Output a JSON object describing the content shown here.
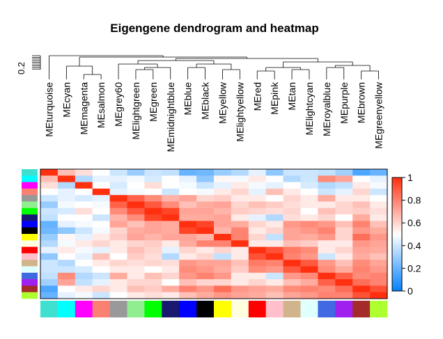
{
  "chart_data": {
    "type": "heatmap",
    "title": "Eigengene dendrogram and heatmap",
    "dendrogram_scale_label": "0.2",
    "modules": [
      "MEturquoise",
      "MEcyan",
      "MEmagenta",
      "MEsalmon",
      "MEgrey60",
      "MElightgreen",
      "MEgreen",
      "MEmidnightblue",
      "MEblue",
      "MEblack",
      "MEyellow",
      "MElightyellow",
      "MEred",
      "MEpink",
      "MEtan",
      "MElightcyan",
      "MEroyalblue",
      "MEpurple",
      "MEbrown",
      "MEgreenyellow"
    ],
    "module_colors": [
      "#40e0d0",
      "#00ffff",
      "#ff00ff",
      "#fa8072",
      "#999999",
      "#90ee90",
      "#00ff00",
      "#191970",
      "#0000ff",
      "#000000",
      "#ffff00",
      "#ffffe0",
      "#ff0000",
      "#ffc0cb",
      "#d2b48c",
      "#e0ffff",
      "#4169e1",
      "#a020f0",
      "#a52a2a",
      "#adff2f"
    ],
    "legend": {
      "ticks": [
        "0",
        "0.2",
        "0.4",
        "0.6",
        "0.8",
        "1"
      ],
      "range": [
        0,
        1
      ],
      "colors": [
        "#0080ff",
        "#ffffff",
        "#ff3010"
      ]
    },
    "values": [
      [
        1.0,
        0.66,
        0.58,
        0.5,
        0.4,
        0.3,
        0.4,
        0.38,
        0.2,
        0.22,
        0.3,
        0.35,
        0.45,
        0.28,
        0.4,
        0.4,
        0.38,
        0.32,
        0.15,
        0.2
      ],
      [
        0.66,
        1.0,
        0.35,
        0.45,
        0.45,
        0.48,
        0.42,
        0.5,
        0.45,
        0.28,
        0.52,
        0.48,
        0.55,
        0.5,
        0.35,
        0.4,
        0.78,
        0.72,
        0.5,
        0.45
      ],
      [
        0.58,
        0.35,
        1.0,
        0.5,
        0.42,
        0.5,
        0.58,
        0.5,
        0.48,
        0.4,
        0.45,
        0.55,
        0.48,
        0.45,
        0.5,
        0.42,
        0.35,
        0.38,
        0.55,
        0.48
      ],
      [
        0.5,
        0.45,
        0.5,
        1.0,
        0.45,
        0.48,
        0.5,
        0.4,
        0.5,
        0.48,
        0.55,
        0.6,
        0.45,
        0.65,
        0.55,
        0.5,
        0.4,
        0.45,
        0.6,
        0.4
      ],
      [
        0.4,
        0.45,
        0.42,
        0.45,
        1.0,
        0.88,
        0.78,
        0.68,
        0.72,
        0.6,
        0.62,
        0.55,
        0.55,
        0.5,
        0.6,
        0.55,
        0.7,
        0.55,
        0.55,
        0.5
      ],
      [
        0.3,
        0.48,
        0.5,
        0.48,
        0.88,
        1.0,
        0.9,
        0.78,
        0.65,
        0.7,
        0.72,
        0.6,
        0.65,
        0.62,
        0.58,
        0.55,
        0.55,
        0.6,
        0.65,
        0.55
      ],
      [
        0.4,
        0.42,
        0.58,
        0.5,
        0.78,
        0.9,
        1.0,
        0.95,
        0.72,
        0.72,
        0.68,
        0.62,
        0.6,
        0.58,
        0.6,
        0.5,
        0.65,
        0.6,
        0.62,
        0.58
      ],
      [
        0.38,
        0.5,
        0.5,
        0.4,
        0.68,
        0.78,
        0.95,
        1.0,
        0.7,
        0.7,
        0.72,
        0.55,
        0.45,
        0.35,
        0.58,
        0.55,
        0.6,
        0.5,
        0.7,
        0.55
      ],
      [
        0.2,
        0.45,
        0.48,
        0.5,
        0.72,
        0.65,
        0.72,
        0.7,
        1.0,
        0.95,
        0.72,
        0.7,
        0.6,
        0.55,
        0.75,
        0.78,
        0.75,
        0.65,
        0.8,
        0.65
      ],
      [
        0.22,
        0.28,
        0.4,
        0.48,
        0.6,
        0.7,
        0.72,
        0.7,
        0.95,
        1.0,
        0.68,
        0.8,
        0.55,
        0.6,
        0.72,
        0.75,
        0.8,
        0.6,
        0.75,
        0.7
      ],
      [
        0.3,
        0.52,
        0.45,
        0.55,
        0.62,
        0.72,
        0.68,
        0.72,
        0.72,
        0.68,
        1.0,
        0.8,
        0.6,
        0.38,
        0.72,
        0.7,
        0.75,
        0.6,
        0.85,
        0.75
      ],
      [
        0.35,
        0.48,
        0.55,
        0.6,
        0.55,
        0.6,
        0.62,
        0.55,
        0.7,
        0.8,
        0.8,
        1.0,
        0.55,
        0.55,
        0.65,
        0.62,
        0.55,
        0.55,
        0.75,
        0.72
      ],
      [
        0.45,
        0.55,
        0.48,
        0.45,
        0.55,
        0.65,
        0.6,
        0.45,
        0.6,
        0.55,
        0.6,
        0.55,
        1.0,
        0.92,
        0.82,
        0.78,
        0.55,
        0.6,
        0.72,
        0.7
      ],
      [
        0.28,
        0.5,
        0.45,
        0.65,
        0.5,
        0.62,
        0.58,
        0.35,
        0.55,
        0.6,
        0.38,
        0.55,
        0.92,
        1.0,
        0.8,
        0.75,
        0.4,
        0.55,
        0.7,
        0.65
      ],
      [
        0.4,
        0.35,
        0.5,
        0.55,
        0.6,
        0.58,
        0.6,
        0.58,
        0.75,
        0.72,
        0.72,
        0.65,
        0.82,
        0.8,
        1.0,
        0.9,
        0.75,
        0.65,
        0.78,
        0.72
      ],
      [
        0.4,
        0.4,
        0.42,
        0.5,
        0.55,
        0.55,
        0.5,
        0.55,
        0.78,
        0.75,
        0.7,
        0.62,
        0.78,
        0.75,
        0.9,
        1.0,
        0.78,
        0.7,
        0.8,
        0.75
      ],
      [
        0.38,
        0.78,
        0.35,
        0.4,
        0.7,
        0.55,
        0.65,
        0.6,
        0.75,
        0.8,
        0.75,
        0.55,
        0.55,
        0.4,
        0.75,
        0.78,
        1.0,
        0.88,
        0.78,
        0.8
      ],
      [
        0.32,
        0.72,
        0.38,
        0.45,
        0.55,
        0.6,
        0.6,
        0.5,
        0.65,
        0.6,
        0.6,
        0.55,
        0.6,
        0.55,
        0.65,
        0.7,
        0.88,
        1.0,
        0.85,
        0.8
      ],
      [
        0.15,
        0.5,
        0.55,
        0.6,
        0.55,
        0.65,
        0.62,
        0.7,
        0.8,
        0.75,
        0.85,
        0.75,
        0.72,
        0.7,
        0.78,
        0.8,
        0.78,
        0.85,
        1.0,
        0.92
      ],
      [
        0.2,
        0.45,
        0.48,
        0.4,
        0.5,
        0.55,
        0.58,
        0.55,
        0.65,
        0.7,
        0.75,
        0.72,
        0.7,
        0.65,
        0.72,
        0.75,
        0.8,
        0.8,
        0.92,
        1.0
      ]
    ]
  }
}
